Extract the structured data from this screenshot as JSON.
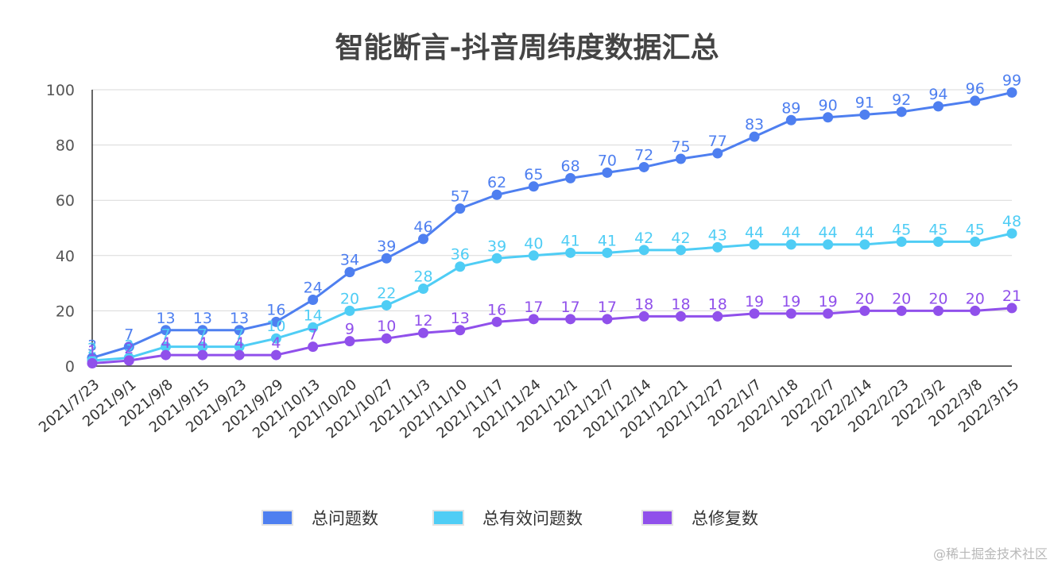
{
  "chart_data": {
    "type": "line",
    "title": "智能断言-抖音周纬度数据汇总",
    "xlabel": "",
    "ylabel": "",
    "ylim": [
      0,
      100
    ],
    "yticks": [
      0,
      20,
      40,
      60,
      80,
      100
    ],
    "grid": true,
    "legend_position": "bottom",
    "categories": [
      "2021/7/23",
      "2021/9/1",
      "2021/9/8",
      "2021/9/15",
      "2021/9/23",
      "2021/9/29",
      "2021/10/13",
      "2021/10/20",
      "2021/10/27",
      "2021/11/3",
      "2021/11/10",
      "2021/11/17",
      "2021/11/24",
      "2021/12/1",
      "2021/12/7",
      "2021/12/14",
      "2021/12/21",
      "2021/12/27",
      "2022/1/7",
      "2022/1/18",
      "2022/2/7",
      "2022/2/14",
      "2022/2/23",
      "2022/3/2",
      "2022/3/8",
      "2022/3/15"
    ],
    "series": [
      {
        "name": "总问题数",
        "color": "#4e7ff0",
        "values": [
          3,
          7,
          13,
          13,
          13,
          16,
          24,
          34,
          39,
          46,
          57,
          62,
          65,
          68,
          70,
          72,
          75,
          77,
          83,
          89,
          90,
          91,
          92,
          94,
          96,
          99
        ]
      },
      {
        "name": "总有效问题数",
        "color": "#4fcdf5",
        "values": [
          2,
          3,
          7,
          7,
          7,
          10,
          14,
          20,
          22,
          28,
          36,
          39,
          40,
          41,
          41,
          42,
          42,
          43,
          44,
          44,
          44,
          44,
          45,
          45,
          45,
          48
        ]
      },
      {
        "name": "总修复数",
        "color": "#9050eb",
        "values": [
          1,
          2,
          4,
          4,
          4,
          4,
          7,
          9,
          10,
          12,
          13,
          16,
          17,
          17,
          17,
          18,
          18,
          18,
          19,
          19,
          19,
          20,
          20,
          20,
          20,
          21
        ]
      }
    ]
  },
  "watermark": "@稀土掘金技术社区"
}
